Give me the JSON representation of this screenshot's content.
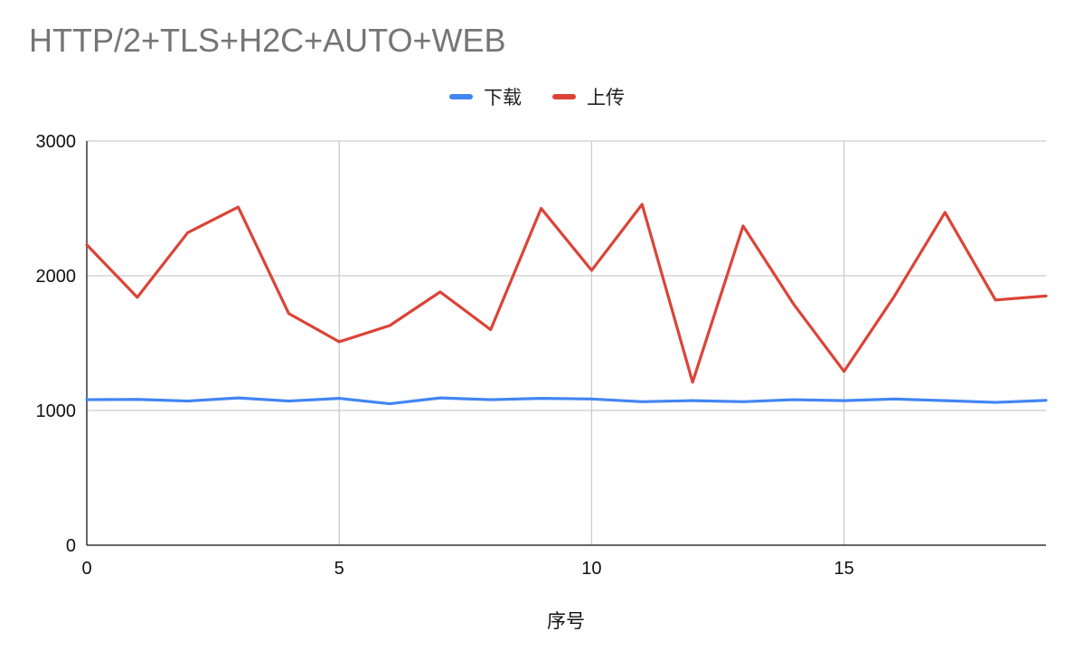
{
  "chart_data": {
    "type": "line",
    "title": "HTTP/2+TLS+H2C+AUTO+WEB",
    "xlabel": "序号",
    "ylabel": "",
    "xlim": [
      0,
      19
    ],
    "ylim": [
      0,
      3000
    ],
    "x_ticks": [
      0,
      5,
      10,
      15
    ],
    "y_ticks": [
      0,
      1000,
      2000,
      3000
    ],
    "grid": true,
    "legend_position": "top-center",
    "x": [
      0,
      1,
      2,
      3,
      4,
      5,
      6,
      7,
      8,
      9,
      10,
      11,
      12,
      13,
      14,
      15,
      16,
      17,
      18,
      19
    ],
    "series": [
      {
        "name": "下载",
        "color": "#4285f4",
        "values": [
          1080,
          1082,
          1070,
          1093,
          1070,
          1090,
          1050,
          1093,
          1080,
          1090,
          1085,
          1065,
          1073,
          1065,
          1080,
          1073,
          1085,
          1073,
          1060,
          1075
        ]
      },
      {
        "name": "上传",
        "color": "#db4437",
        "values": [
          2230,
          1840,
          2320,
          2510,
          1720,
          1510,
          1630,
          1880,
          1600,
          2500,
          2040,
          2530,
          1210,
          2370,
          1790,
          1290,
          1850,
          2470,
          1820,
          1850
        ]
      }
    ]
  }
}
